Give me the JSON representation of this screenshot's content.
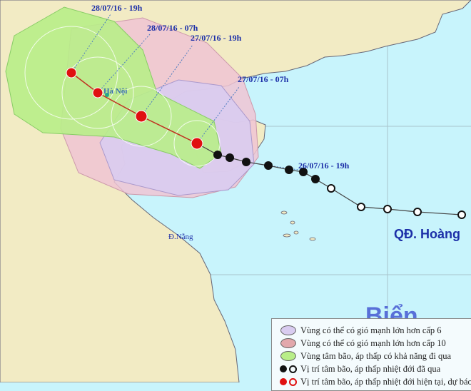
{
  "colors": {
    "sea": "#c8f4fc",
    "land": "#f2ebc4",
    "zone_level6": "#d9ccf0",
    "zone_level10": "#f0c4d4",
    "center_zone": "#b8ee88",
    "forecast_track": "#e01010",
    "past_track": "#111111"
  },
  "track_labels": {
    "t1": "28/07/16 - 19h",
    "t2": "28/07/16 - 07h",
    "t3": "27/07/16 - 19h",
    "t4": "27/07/16 - 07h",
    "t5": "26/07/16 - 19h"
  },
  "places": {
    "hanoi": "Hà Nội",
    "danang": "Đ.Nẵng",
    "paracel": "QĐ. Hoàng",
    "sea": "Biển Đông"
  },
  "legend": [
    {
      "icon": "purple-ellipse",
      "label": "Vùng có thể có gió mạnh lớn hơn cấp 6"
    },
    {
      "icon": "pink-ellipse",
      "label": "Vùng có thể có gió mạnh lớn hơn cấp 10"
    },
    {
      "icon": "green-ellipse",
      "label": "Vùng tâm bão, áp thấp có khả năng đi qua"
    },
    {
      "icon": "black-storm-and-circle",
      "label": "Vị trí tâm bão, áp thấp nhiệt đới đã qua"
    },
    {
      "icon": "red-storm-and-circle",
      "label": "Vị trí tâm bão, áp thấp nhiệt đới hiện tại, dự báo"
    }
  ]
}
